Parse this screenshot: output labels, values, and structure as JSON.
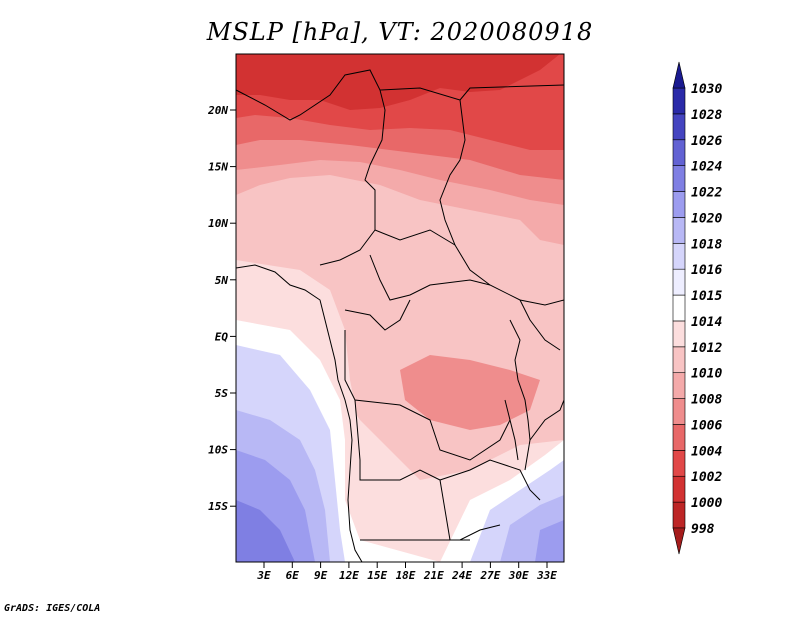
{
  "title": "MSLP [hPa], VT: 2020080918",
  "credit": "GrADS: IGES/COLA",
  "lat_ticks": [
    "20N",
    "15N",
    "10N",
    "5N",
    "EQ",
    "5S",
    "10S",
    "15S"
  ],
  "lon_ticks": [
    "3E",
    "6E",
    "9E",
    "12E",
    "15E",
    "18E",
    "21E",
    "24E",
    "27E",
    "30E",
    "33E"
  ],
  "colorbar": {
    "labels": [
      "998",
      "1000",
      "1002",
      "1004",
      "1006",
      "1008",
      "1010",
      "1012",
      "1014",
      "1015",
      "1016",
      "1018",
      "1020",
      "1022",
      "1024",
      "1026",
      "1028",
      "1030"
    ],
    "colors_low_to_high": [
      "#a51c1c",
      "#bd2626",
      "#d23232",
      "#e14848",
      "#e86868",
      "#ef8d8d",
      "#f4aaaa",
      "#f8c4c4",
      "#fcdede",
      "#ffffff",
      "#eeeeff",
      "#d5d5fb",
      "#b8b8f5",
      "#9c9cef",
      "#7f7fe3",
      "#6262d3",
      "#4444c0",
      "#2a2aa8",
      "#1a1a90"
    ]
  },
  "map_field_colors": {
    "deep_red": "#d23232",
    "red": "#e14848",
    "mid_red": "#e86868",
    "salmon": "#ef8d8d",
    "light_salmon": "#f4aaaa",
    "pink": "#f8c4c4",
    "pale_pink": "#fcdede",
    "white": "#ffffff",
    "pale_blue": "#d5d5fb",
    "light_blue": "#b8b8f5",
    "blue": "#9c9cef",
    "deep_blue": "#7f7fe3"
  }
}
